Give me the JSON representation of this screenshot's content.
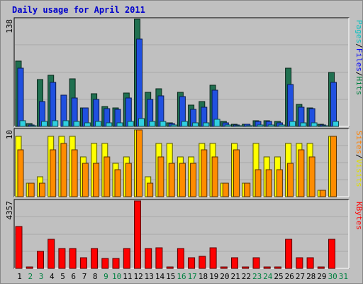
{
  "chart_data": {
    "type": "bar",
    "title": "Daily usage for April 2011",
    "x": [
      "1",
      "2",
      "3",
      "4",
      "5",
      "6",
      "7",
      "8",
      "9",
      "10",
      "11",
      "12",
      "13",
      "14",
      "15",
      "16",
      "17",
      "18",
      "19",
      "20",
      "21",
      "22",
      "23",
      "24",
      "25",
      "26",
      "27",
      "28",
      "29",
      "30",
      "31"
    ],
    "weekend_days": [
      "2",
      "3",
      "9",
      "10",
      "16",
      "17",
      "23",
      "24",
      "30",
      "31"
    ],
    "panels": [
      {
        "name": "hits-files-pages",
        "ymax": 138,
        "ymax_label": "138",
        "legend": [
          "Pages",
          "/",
          "Files",
          "/",
          "Hits"
        ],
        "series": [
          {
            "name": "Hits",
            "color": "#207050",
            "values": [
              84,
              4,
              60,
              66,
              0,
              61,
              24,
              42,
              26,
              24,
              43,
              138,
              44,
              48,
              5,
              44,
              27,
              32,
              53,
              6,
              3,
              3,
              7,
              7,
              6,
              75,
              28,
              24,
              3,
              69,
              0
            ]
          },
          {
            "name": "Files",
            "color": "#2050e0",
            "values": [
              75,
              2,
              32,
              57,
              40,
              37,
              24,
              35,
              23,
              22,
              37,
              112,
              35,
              39,
              4,
              38,
              22,
              25,
              47,
              5,
              2,
              3,
              6,
              6,
              5,
              54,
              25,
              23,
              2,
              57,
              0
            ]
          },
          {
            "name": "Pages",
            "color": "#30d0e0",
            "values": [
              7,
              1,
              6,
              7,
              7,
              6,
              5,
              6,
              5,
              5,
              6,
              10,
              6,
              6,
              2,
              6,
              5,
              5,
              9,
              2,
              1,
              1,
              2,
              2,
              2,
              6,
              5,
              5,
              1,
              6,
              0
            ]
          }
        ]
      },
      {
        "name": "visits-sites",
        "ymax": 10,
        "ymax_label": "10",
        "legend": [
          "Sites",
          "/",
          "Visits"
        ],
        "series": [
          {
            "name": "Visits",
            "color": "#ffff00",
            "values": [
              9,
              2,
              3,
              9,
              9,
              9,
              6,
              8,
              8,
              5,
              6,
              10,
              3,
              8,
              8,
              6,
              6,
              8,
              8,
              2,
              8,
              2,
              8,
              6,
              6,
              8,
              8,
              8,
              1,
              9,
              0
            ]
          },
          {
            "name": "Sites",
            "color": "#ff8c00",
            "values": [
              7,
              2,
              2,
              7,
              8,
              7,
              5,
              5,
              6,
              4,
              5,
              10,
              2,
              6,
              5,
              5,
              5,
              7,
              6,
              2,
              7,
              2,
              4,
              4,
              4,
              5,
              7,
              6,
              1,
              9,
              0
            ]
          }
        ]
      },
      {
        "name": "kbytes",
        "ymax": 4357,
        "ymax_label": "4357",
        "legend": [
          "KBytes"
        ],
        "series": [
          {
            "name": "KBytes",
            "color": "#ff0000",
            "values": [
              2700,
              80,
              1100,
              1900,
              1300,
              1300,
              700,
              1300,
              650,
              650,
              1300,
              4357,
              1300,
              1350,
              80,
              1300,
              700,
              800,
              1350,
              80,
              700,
              80,
              700,
              80,
              80,
              1900,
              700,
              700,
              80,
              1900,
              0
            ]
          }
        ]
      }
    ],
    "grid": true
  }
}
